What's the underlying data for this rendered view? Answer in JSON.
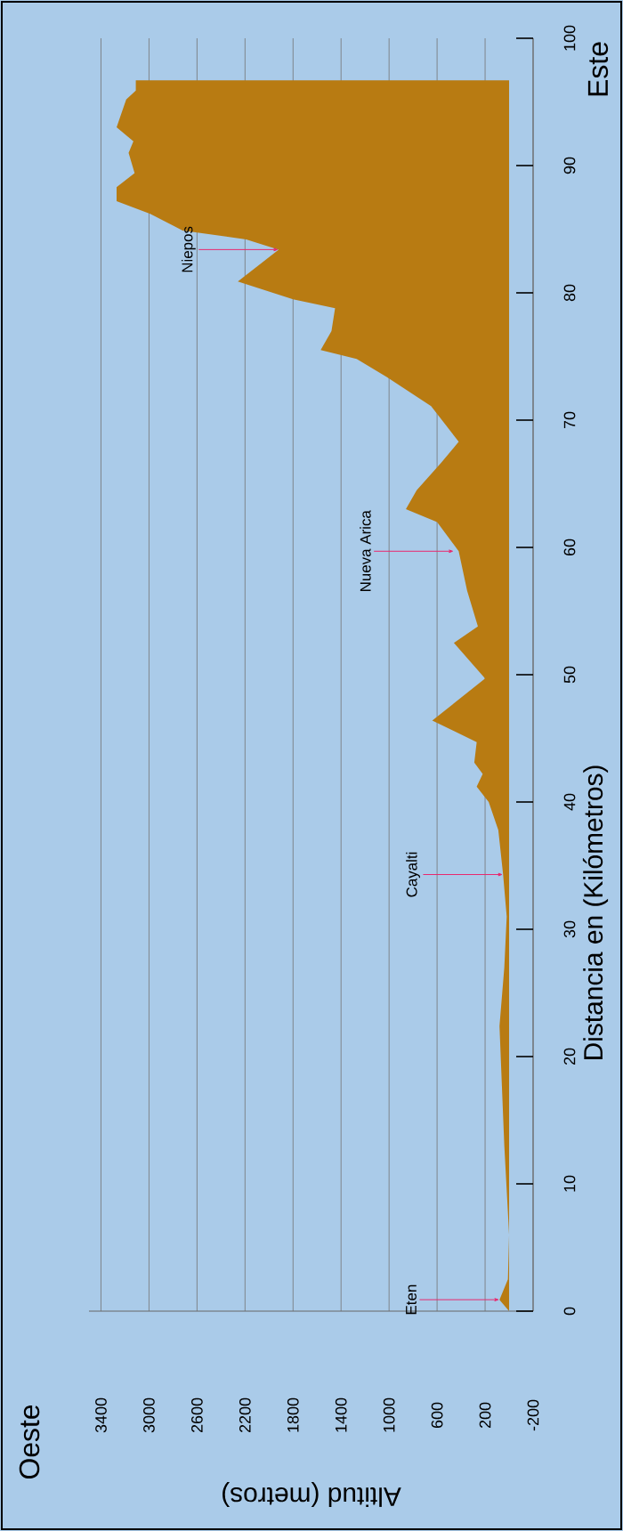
{
  "chart_data": {
    "type": "area",
    "orientation": "horizontal",
    "xlabel": "Altitud (metros)",
    "ylabel": "Distancia en (Kilómetros)",
    "x": [
      0,
      0.9,
      2.5,
      6,
      13,
      17.7,
      22.4,
      27,
      31,
      34.3,
      37.8,
      40,
      41.2,
      42.2,
      43.1,
      44.7,
      46.4,
      49.7,
      52.5,
      53.8,
      56.6,
      59.7,
      62,
      63,
      64.5,
      66.6,
      68.3,
      71.1,
      73.4,
      74.8,
      75.5,
      77,
      78.8,
      79.5,
      80.9,
      83.4,
      84.2,
      84.9,
      86.2,
      87.2,
      88.3,
      89.4,
      91,
      91.9,
      93,
      95.2,
      95.9,
      96.7
    ],
    "values": [
      0,
      80,
      10,
      0,
      40,
      60,
      80,
      40,
      20,
      50,
      90,
      170,
      270,
      220,
      290,
      270,
      640,
      200,
      460,
      260,
      350,
      420,
      600,
      860,
      770,
      570,
      420,
      650,
      1020,
      1270,
      1570,
      1480,
      1450,
      1800,
      2260,
      1920,
      2190,
      2720,
      2990,
      3270,
      3270,
      3120,
      3170,
      3130,
      3270,
      3190,
      3110,
      3110
    ],
    "color": "#b87b12",
    "xlim": [
      3500,
      -200
    ],
    "ylim": [
      0,
      100
    ],
    "xticks": [
      3400,
      3000,
      2600,
      2200,
      1800,
      1400,
      1000,
      600,
      200,
      -200
    ],
    "yticks": [
      0,
      10,
      20,
      30,
      40,
      50,
      60,
      70,
      80,
      90,
      100
    ],
    "grid": "x",
    "annotations": [
      {
        "text": "Eten",
        "x": 80,
        "y": 0.9
      },
      {
        "text": "Cayalti",
        "x": 50,
        "y": 34.3
      },
      {
        "text": "Nueva Arica",
        "x": 460,
        "y": 59.7
      },
      {
        "text": "Niepos",
        "x": 1920,
        "y": 83.4
      },
      "Oeste",
      "Este"
    ]
  }
}
